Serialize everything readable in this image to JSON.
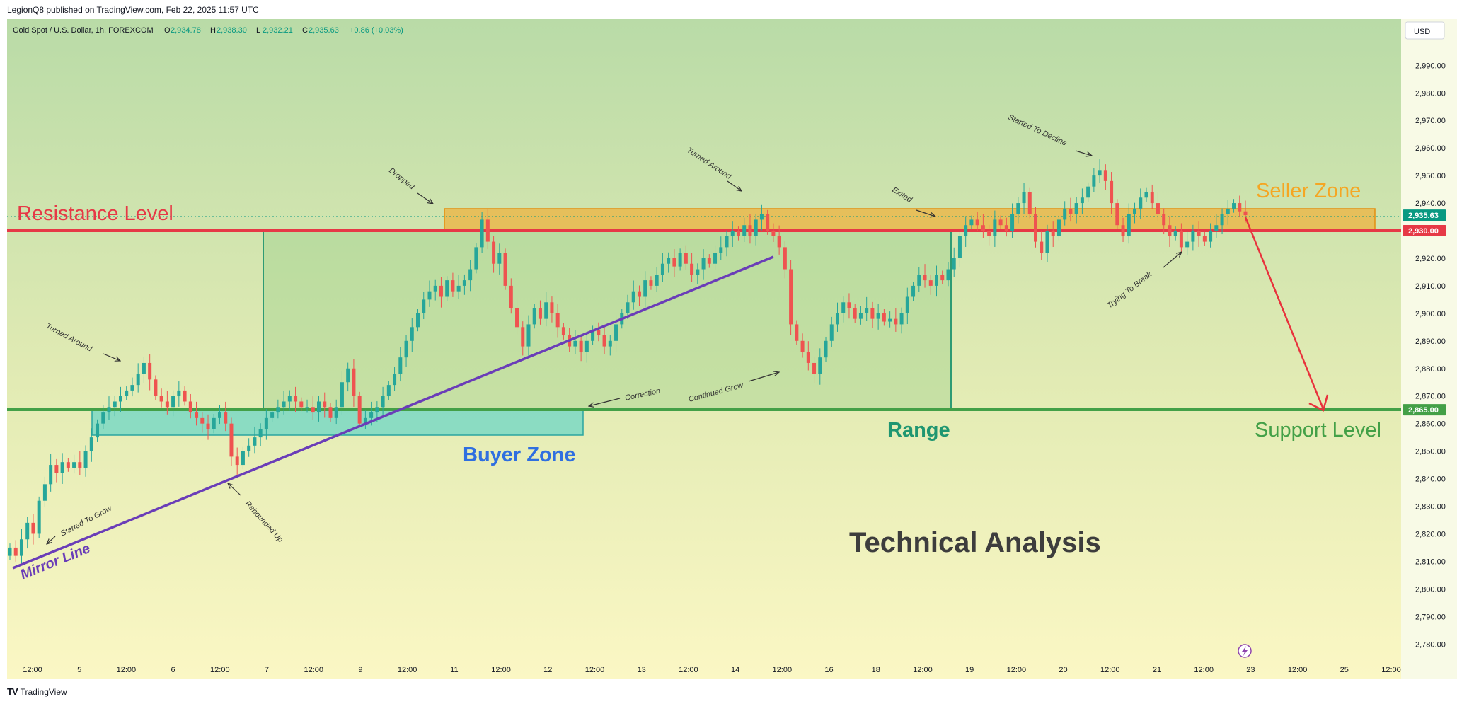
{
  "header": {
    "publisher": "LegionQ8 published on TradingView.com, Feb 22, 2025 11:57 UTC",
    "symbol": "Gold Spot / U.S. Dollar, 1h, FOREXCOM",
    "ohlc": [
      {
        "label": "O",
        "value": "2,934.78"
      },
      {
        "label": "H",
        "value": "2,938.30"
      },
      {
        "label": "L",
        "value": "2,932.21"
      },
      {
        "label": "C",
        "value": "2,935.63"
      }
    ],
    "change": "+0.86 (+0.03%)",
    "currency": "USD"
  },
  "footer": {
    "brand": "TradingView"
  },
  "colors": {
    "up": "#26a69a",
    "down": "#ef5350",
    "resistance": "#e63946",
    "support": "#43a047",
    "mirror": "#6a3db8",
    "seller_zone": "#f5a623",
    "buyer_zone": "#4fd0c9",
    "range": "#2e9b74",
    "projection": "#e8323c"
  },
  "chart_data": {
    "type": "candlestick",
    "instrument": "Gold Spot / U.S. Dollar",
    "timeframe": "1h",
    "ylim": [
      2775,
      2995
    ],
    "y_ticks": [
      "2,990.00",
      "2,980.00",
      "2,970.00",
      "2,960.00",
      "2,950.00",
      "2,940.00",
      "2,930.00",
      "2,920.00",
      "2,910.00",
      "2,900.00",
      "2,890.00",
      "2,880.00",
      "2,870.00",
      "2,860.00",
      "2,850.00",
      "2,840.00",
      "2,830.00",
      "2,820.00",
      "2,810.00",
      "2,800.00",
      "2,790.00",
      "2,780.00"
    ],
    "y_tick_values": [
      2990,
      2980,
      2970,
      2960,
      2950,
      2940,
      2930,
      2920,
      2910,
      2900,
      2890,
      2880,
      2870,
      2860,
      2850,
      2840,
      2830,
      2820,
      2810,
      2800,
      2790,
      2780
    ],
    "x_ticks": [
      "12:00",
      "5",
      "12:00",
      "6",
      "12:00",
      "7",
      "12:00",
      "9",
      "12:00",
      "11",
      "12:00",
      "12",
      "12:00",
      "13",
      "12:00",
      "14",
      "12:00",
      "16",
      "18",
      "12:00",
      "19",
      "12:00",
      "20",
      "12:00",
      "21",
      "12:00",
      "23",
      "12:00",
      "25",
      "12:00"
    ],
    "price_labels": [
      {
        "value": 2935.63,
        "text": "2,935.63",
        "color": "#089981"
      },
      {
        "value": 2930.0,
        "text": "2,930.00",
        "color": "#e63946"
      },
      {
        "value": 2865.0,
        "text": "2,865.00",
        "color": "#43a047"
      }
    ],
    "levels": {
      "resistance": 2930,
      "support": 2865,
      "last": 2935.63
    },
    "series": [
      {
        "name": "Price",
        "close": [
          2815,
          2812,
          2818,
          2824,
          2820,
          2832,
          2838,
          2845,
          2842,
          2846,
          2844,
          2846,
          2844,
          2850,
          2855,
          2860,
          2864,
          2866,
          2868,
          2870,
          2872,
          2874,
          2878,
          2882,
          2876,
          2870,
          2868,
          2866,
          2870,
          2872,
          2868,
          2864,
          2862,
          2860,
          2858,
          2862,
          2864,
          2860,
          2848,
          2845,
          2850,
          2852,
          2855,
          2858,
          2862,
          2864,
          2866,
          2868,
          2870,
          2868,
          2866,
          2866,
          2864,
          2868,
          2866,
          2862,
          2866,
          2875,
          2880,
          2870,
          2860,
          2862,
          2864,
          2866,
          2870,
          2874,
          2878,
          2884,
          2890,
          2895,
          2900,
          2905,
          2908,
          2910,
          2906,
          2912,
          2908,
          2910,
          2912,
          2916,
          2924,
          2934,
          2926,
          2918,
          2922,
          2910,
          2902,
          2895,
          2888,
          2896,
          2902,
          2898,
          2904,
          2900,
          2895,
          2892,
          2888,
          2890,
          2886,
          2890,
          2894,
          2892,
          2888,
          2890,
          2896,
          2900,
          2904,
          2908,
          2906,
          2912,
          2910,
          2914,
          2918,
          2920,
          2917,
          2922,
          2918,
          2914,
          2916,
          2920,
          2918,
          2922,
          2924,
          2928,
          2930,
          2928,
          2932,
          2928,
          2934,
          2936,
          2930,
          2928,
          2924,
          2916,
          2896,
          2890,
          2886,
          2882,
          2878,
          2884,
          2890,
          2896,
          2900,
          2904,
          2902,
          2898,
          2900,
          2902,
          2898,
          2900,
          2897,
          2898,
          2896,
          2900,
          2906,
          2910,
          2914,
          2912,
          2910,
          2914,
          2912,
          2916,
          2920,
          2928,
          2932,
          2934,
          2932,
          2930,
          2928,
          2934,
          2932,
          2930,
          2936,
          2940,
          2944,
          2936,
          2926,
          2922,
          2930,
          2928,
          2934,
          2938,
          2936,
          2940,
          2942,
          2946,
          2950,
          2952,
          2948,
          2940,
          2932,
          2928,
          2936,
          2938,
          2942,
          2944,
          2940,
          2936,
          2932,
          2928,
          2930,
          2924,
          2926,
          2930,
          2928,
          2926,
          2930,
          2932,
          2936,
          2938,
          2940,
          2937,
          2935.63
        ]
      }
    ]
  },
  "annotations": {
    "resistance_label": "Resistance Level",
    "support_label": "Support Level",
    "seller_zone": "Seller Zone",
    "buyer_zone": "Buyer Zone",
    "range": "Range",
    "mirror_line": "Mirror Line",
    "title": "Technical Analysis",
    "notes": {
      "turned_around_1": "Turned Around",
      "started_to_grow": "Started To  Grow",
      "rebounded_up": "Rebounded Up",
      "dropped": "Dropped",
      "correction": "Correction",
      "turned_around_2": "Turned Around",
      "continued_grow": "Continued Grow",
      "exited": "Exited",
      "started_to_decline": "Started To Decline",
      "trying_to_break": "Trying To Break"
    }
  }
}
